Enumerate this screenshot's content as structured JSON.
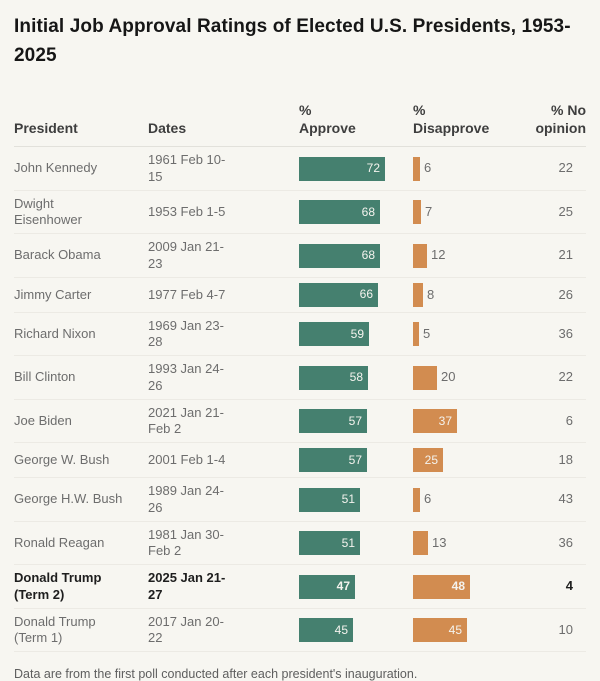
{
  "page": {
    "title": "Initial Job Approval Ratings of Elected U.S. Presidents, 1953-2025",
    "footer": "Data are from the first poll conducted after each president's inauguration."
  },
  "table_headers": {
    "president": "President",
    "dates": "Dates",
    "approve": "% Approve",
    "disapprove": "% Disapprove",
    "no_opinion": "% No opinion"
  },
  "colors": {
    "approve_bar": "#45806f",
    "disapprove_bar": "#d28c50",
    "bar_label": "#f4f3ee",
    "background": "#f7f6f1"
  },
  "chart_data": {
    "type": "bar",
    "orientation": "horizontal",
    "title": "Initial Job Approval Ratings of Elected U.S. Presidents, 1953-2025",
    "axis_range": [
      0,
      100
    ],
    "grid": false,
    "legend": false,
    "series": [
      {
        "name": "% Approve",
        "color": "#45806f"
      },
      {
        "name": "% Disapprove",
        "color": "#d28c50"
      }
    ],
    "rows": [
      {
        "president": "John Kennedy",
        "dates": "1961 Feb 10-15",
        "approve": 72,
        "disapprove": 6,
        "no_opinion": 22,
        "bold": false
      },
      {
        "president": "Dwight Eisenhower",
        "dates": "1953 Feb 1-5",
        "approve": 68,
        "disapprove": 7,
        "no_opinion": 25,
        "bold": false
      },
      {
        "president": "Barack Obama",
        "dates": "2009 Jan 21-23",
        "approve": 68,
        "disapprove": 12,
        "no_opinion": 21,
        "bold": false
      },
      {
        "president": "Jimmy Carter",
        "dates": "1977 Feb 4-7",
        "approve": 66,
        "disapprove": 8,
        "no_opinion": 26,
        "bold": false
      },
      {
        "president": "Richard Nixon",
        "dates": "1969 Jan 23-28",
        "approve": 59,
        "disapprove": 5,
        "no_opinion": 36,
        "bold": false
      },
      {
        "president": "Bill Clinton",
        "dates": "1993 Jan 24-26",
        "approve": 58,
        "disapprove": 20,
        "no_opinion": 22,
        "bold": false
      },
      {
        "president": "Joe Biden",
        "dates": "2021 Jan 21-Feb 2",
        "approve": 57,
        "disapprove": 37,
        "no_opinion": 6,
        "bold": false
      },
      {
        "president": "George W. Bush",
        "dates": "2001 Feb 1-4",
        "approve": 57,
        "disapprove": 25,
        "no_opinion": 18,
        "bold": false
      },
      {
        "president": "George H.W. Bush",
        "dates": "1989 Jan 24-26",
        "approve": 51,
        "disapprove": 6,
        "no_opinion": 43,
        "bold": false
      },
      {
        "president": "Ronald Reagan",
        "dates": "1981 Jan 30-Feb 2",
        "approve": 51,
        "disapprove": 13,
        "no_opinion": 36,
        "bold": false
      },
      {
        "president": "Donald Trump (Term 2)",
        "dates": "2025 Jan 21-27",
        "approve": 47,
        "disapprove": 48,
        "no_opinion": 4,
        "bold": true
      },
      {
        "president": "Donald Trump (Term 1)",
        "dates": "2017 Jan 20-22",
        "approve": 45,
        "disapprove": 45,
        "no_opinion": 10,
        "bold": false
      }
    ]
  }
}
